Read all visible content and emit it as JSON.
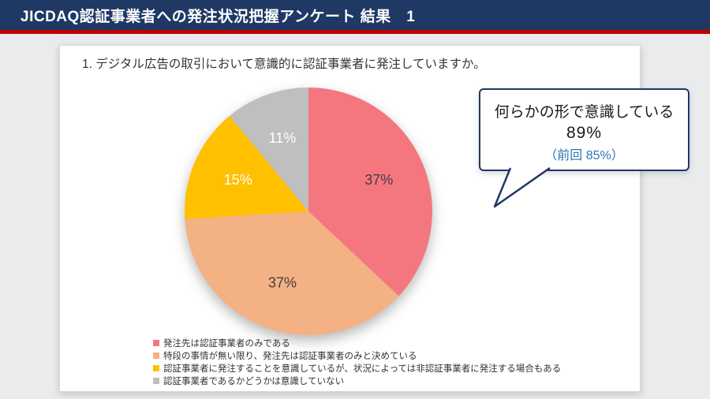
{
  "header": {
    "title": "JICDAQ認証事業者への発注状況把握アンケート 結果　1"
  },
  "callout": {
    "line1": "何らかの形で意識している",
    "line2": "89%",
    "line3": "（前回 85%）"
  },
  "chart_data": {
    "type": "pie",
    "title": "1. デジタル広告の取引において意識的に認証事業者に発注していますか。",
    "labels": [
      "発注先は認証事業者のみである",
      "特段の事情が無い限り、発注先は認証事業者のみと決めている",
      "認証事業者に発注することを意識しているが、状況によっては非認証事業者に発注する場合もある",
      "認証事業者であるかどうかは意識していない"
    ],
    "values": [
      37,
      37,
      15,
      11
    ],
    "label_texts": [
      "37%",
      "37%",
      "15%",
      "11%"
    ],
    "colors": [
      "#F4777F",
      "#F4B183",
      "#FFC000",
      "#BFBFBF"
    ],
    "label_colors": [
      "#3F3F3F",
      "#3F3F3F",
      "#FFFFFF",
      "#FFFFFF"
    ],
    "start_angle_deg": -90,
    "direction": "clockwise",
    "legend_position": "bottom-left"
  },
  "colors": {
    "header_bg": "#1F3864",
    "accent_line": "#C00000",
    "page_bg": "#E9EBED",
    "card_bg": "#FFFFFF",
    "callout_border": "#1F3864",
    "callout_prev_text": "#2E75B6"
  }
}
